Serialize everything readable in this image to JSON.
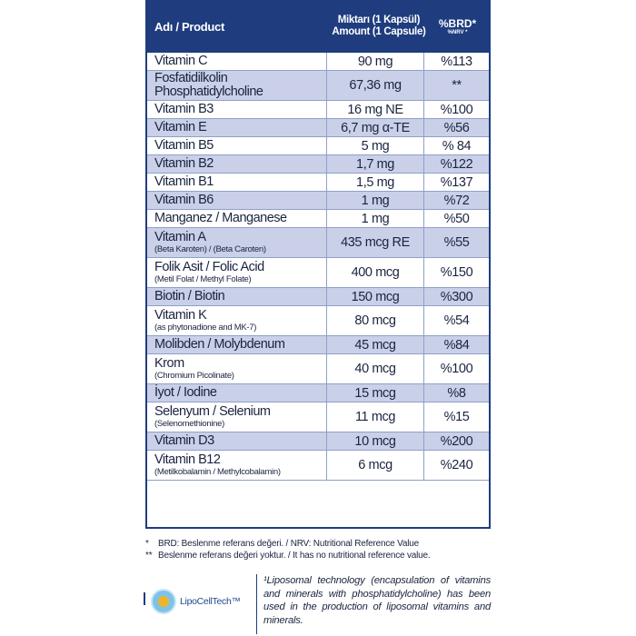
{
  "table": {
    "header": {
      "product": "Adı / Product",
      "amount": "Miktarı (1 Kapsül) Amount (1 Capsule)",
      "brd": "%BRD*",
      "nrv": "%NRV *"
    },
    "rows": [
      {
        "name": "Vitamin C",
        "sub": "",
        "amount": "90 mg",
        "pct": "%113"
      },
      {
        "name": "Fosfatidilkolin Phosphatidylcholine",
        "sub": "",
        "amount": "67,36 mg",
        "pct": "**"
      },
      {
        "name": "Vitamin B3",
        "sub": "",
        "amount": "16 mg NE",
        "pct": "%100"
      },
      {
        "name": "Vitamin E",
        "sub": "",
        "amount": "6,7 mg α-TE",
        "pct": "%56"
      },
      {
        "name": "Vitamin B5",
        "sub": "",
        "amount": "5 mg",
        "pct": "% 84"
      },
      {
        "name": "Vitamin B2",
        "sub": "",
        "amount": "1,7 mg",
        "pct": "%122"
      },
      {
        "name": "Vitamin B1",
        "sub": "",
        "amount": "1,5 mg",
        "pct": "%137"
      },
      {
        "name": "Vitamin B6",
        "sub": "",
        "amount": "1 mg",
        "pct": "%72"
      },
      {
        "name": "Manganez / Manganese",
        "sub": "",
        "amount": "1 mg",
        "pct": "%50"
      },
      {
        "name": "Vitamin A",
        "sub": "(Beta Karoten) / (Beta Caroten)",
        "amount": "435 mcg RE",
        "pct": "%55"
      },
      {
        "name": "Folik Asit / Folic Acid",
        "sub": "(Metil Folat / Methyl Folate)",
        "amount": "400 mcg",
        "pct": "%150"
      },
      {
        "name": "Biotin / Biotin",
        "sub": "",
        "amount": "150 mcg",
        "pct": "%300"
      },
      {
        "name": "Vitamin K",
        "sub": "(as phytonadione and MK-7)",
        "amount": "80 mcg",
        "pct": "%54"
      },
      {
        "name": "Molibden / Molybdenum",
        "sub": "",
        "amount": "45 mcg",
        "pct": "%84"
      },
      {
        "name": "Krom",
        "sub": "(Chromium Picolinate)",
        "amount": "40 mcg",
        "pct": "%100"
      },
      {
        "name": "İyot / Iodine",
        "sub": "",
        "amount": "15 mcg",
        "pct": "%8"
      },
      {
        "name": "Selenyum / Selenium",
        "sub": "(Selenomethionine)",
        "amount": "11 mcg",
        "pct": "%15"
      },
      {
        "name": "Vitamin D3",
        "sub": "",
        "amount": "10 mcg",
        "pct": "%200"
      },
      {
        "name": "Vitamin B12",
        "sub": "(Metilkobalamin / Methylcobalamin)",
        "amount": "6 mcg",
        "pct": "%240"
      }
    ]
  },
  "footnotes": {
    "note1_mark": "*",
    "note1": "BRD: Beslenme referans değeri. / NRV: Nutritional Reference Value",
    "note2_mark": "**",
    "note2": "Beslenme referans değeri yoktur. / It has no nutritional reference value."
  },
  "logo": {
    "text": "LipoCellTech™"
  },
  "tech_note": "¹Liposomal technology (encapsulation of vitamins and minerals with phosphatidylcholine) has been used in the production of liposomal vitamins and minerals.",
  "colors": {
    "header": "#1f3c7e",
    "shaded_row": "#c9d0e8",
    "text": "#1a2440"
  }
}
